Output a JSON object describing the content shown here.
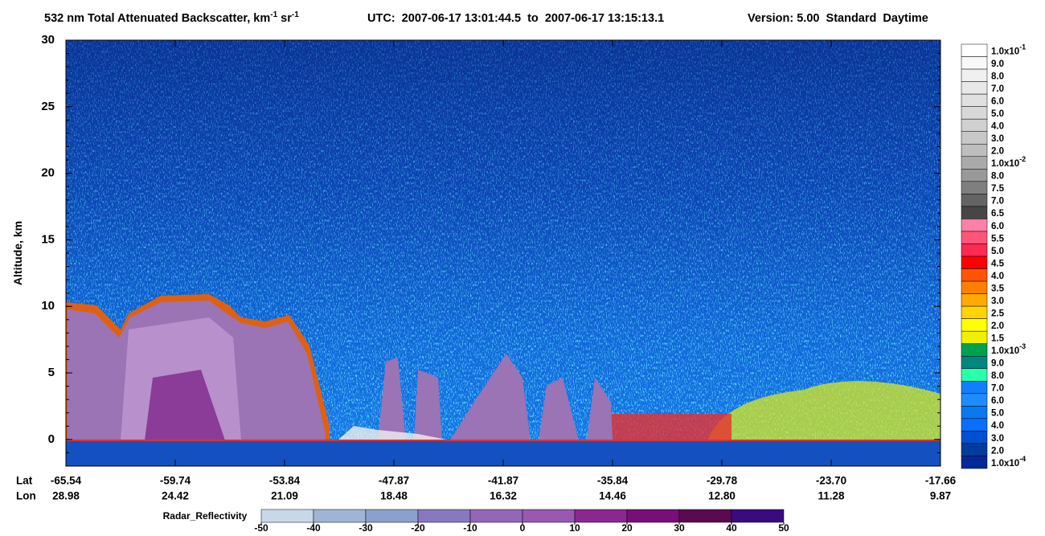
{
  "chart_data": {
    "type": "curtain",
    "title": {
      "main": "532 nm Total Attenuated Backscatter, km",
      "exp1": "-1",
      "mid": " sr",
      "exp2": "-1",
      "utc": "UTC:  2007-06-17 13:01:44.5  to  2007-06-17 13:15:13.1",
      "version": "Version: 5.00  Standard  Daytime"
    },
    "ylabel": "Altitude, km",
    "ylim": [
      -2,
      30
    ],
    "yticks": [
      0,
      5,
      10,
      15,
      20,
      25,
      30
    ],
    "x_rows": [
      {
        "name": "Lat",
        "labels": [
          "-65.54",
          "-59.74",
          "-53.84",
          "-47.87",
          "-41.87",
          "-35.84",
          "-29.78",
          "-23.70",
          "-17.66"
        ]
      },
      {
        "name": "Lon",
        "labels": [
          "28.98",
          "24.42",
          "21.09",
          "18.48",
          "16.32",
          "14.46",
          "12.80",
          "11.28",
          "9.87"
        ]
      }
    ],
    "backscatter_colorbar": {
      "labels": [
        {
          "mantissa": "1.0x10",
          "exp": "-1"
        },
        "9.0",
        "8.0",
        "7.0",
        "6.0",
        "5.0",
        "4.0",
        "3.0",
        "2.0",
        {
          "mantissa": "1.0x10",
          "exp": "-2"
        },
        "8.0",
        "7.5",
        "7.0",
        "6.5",
        "6.0",
        "5.5",
        "5.0",
        "4.5",
        "4.0",
        "3.5",
        "3.0",
        "2.5",
        "2.0",
        "1.5",
        {
          "mantissa": "1.0x10",
          "exp": "-3"
        },
        "9.0",
        "8.0",
        "7.0",
        "6.0",
        "5.0",
        "4.0",
        "3.0",
        "2.0",
        {
          "mantissa": "1.0x10",
          "exp": "-4"
        }
      ],
      "colors": [
        "#ffffff",
        "#f8f8f8",
        "#f0f0f0",
        "#e8e8e8",
        "#e0e0e0",
        "#d8d8d8",
        "#d0d0d0",
        "#c8c8c8",
        "#bebebe",
        "#aaaaaa",
        "#999999",
        "#7f7f7f",
        "#646464",
        "#464646",
        "#ff7fa8",
        "#ff5577",
        "#ff2a50",
        "#ff0000",
        "#ff5500",
        "#ff7f00",
        "#ffaa00",
        "#ffd400",
        "#ffff00",
        "#f0f000",
        "#00a050",
        "#00877f",
        "#2affaa",
        "#0f7fff",
        "#1e8cff",
        "#0a78f0",
        "#0a6eff",
        "#0050d0",
        "#003c9c",
        "#002896"
      ]
    },
    "radar_colorbar": {
      "label": "Radar_Reflectivity",
      "lim": [
        -50,
        50
      ],
      "ticks": [
        -50,
        -40,
        -30,
        -20,
        -10,
        0,
        10,
        20,
        30,
        40,
        50
      ],
      "colors": [
        "#c8d8e8",
        "#a0b4d4",
        "#8ca0cc",
        "#8878c0",
        "#9466b8",
        "#9a58b0",
        "#8a2890",
        "#780f78",
        "#5a0a50",
        "#3a0a80"
      ]
    }
  }
}
